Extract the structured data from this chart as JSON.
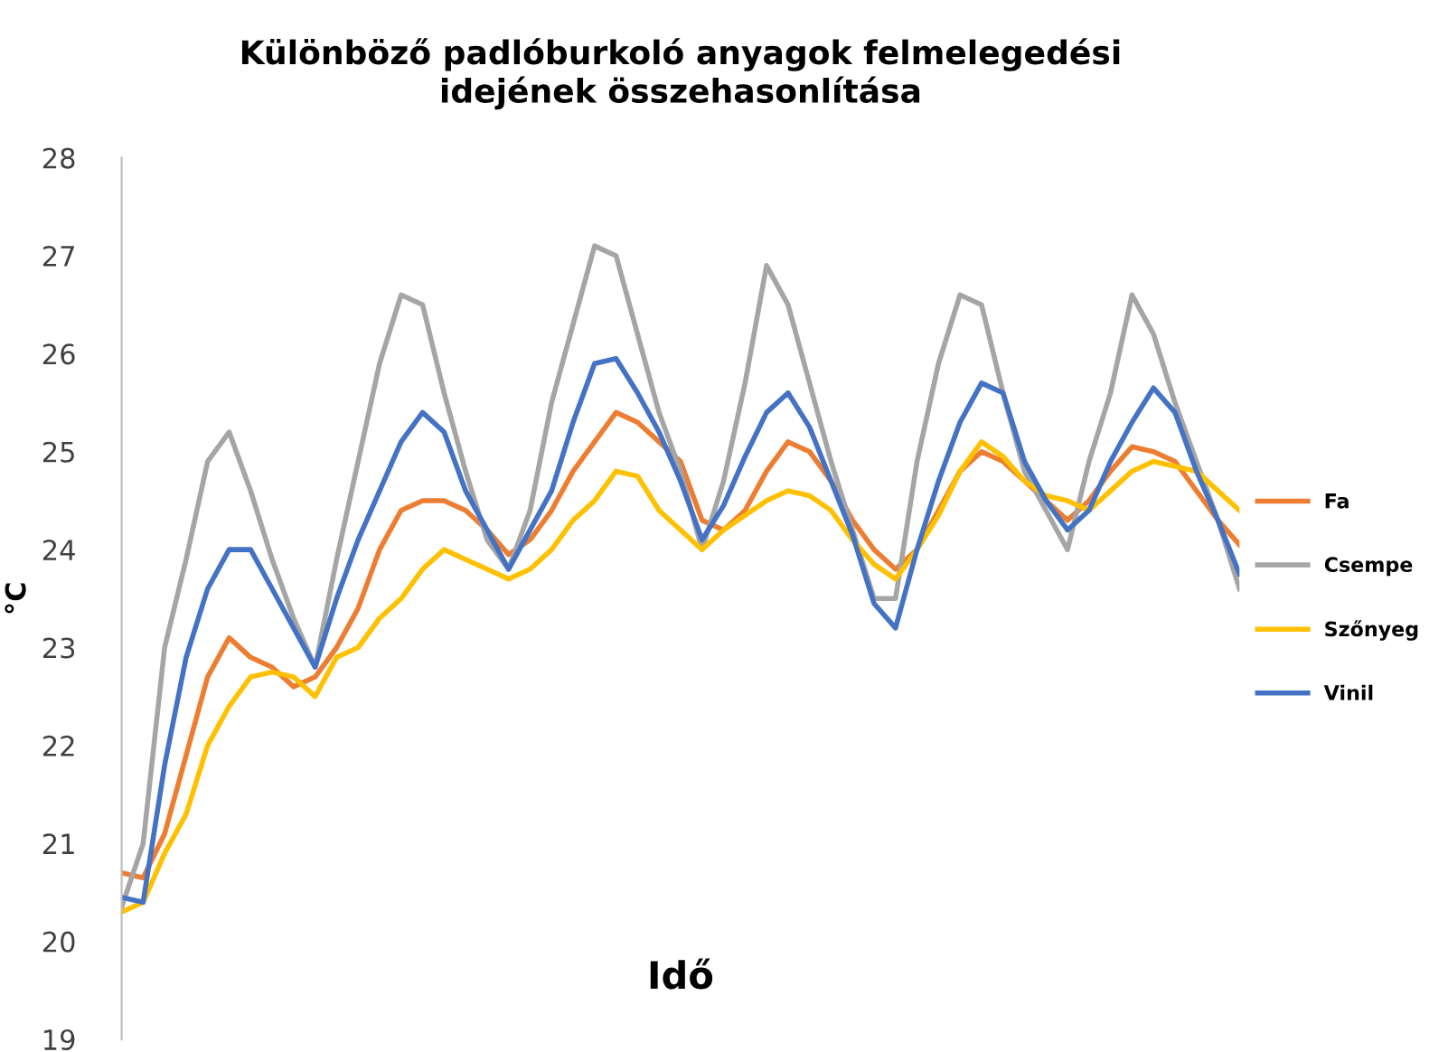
{
  "chart_data": {
    "type": "line",
    "title": "Különböző padlóburkoló anyagok felmelegedési\nidejének összehasonlítása",
    "xlabel": "Idő",
    "ylabel": "°C",
    "categories": [
      null,
      null,
      null,
      null,
      null,
      null,
      null,
      null,
      null,
      null,
      null,
      null,
      null,
      null,
      null,
      null,
      null,
      null,
      null,
      null,
      null,
      null,
      null,
      null,
      null,
      null,
      null,
      null,
      null,
      null,
      null,
      null,
      null,
      null,
      null,
      null,
      null,
      null,
      null,
      null,
      null,
      null,
      null,
      null,
      null,
      null,
      null,
      null,
      null,
      null,
      null,
      null,
      null
    ],
    "series": [
      {
        "name": "Fa",
        "color": "#ed7d31",
        "values": [
          20.7,
          20.65,
          21.1,
          21.9,
          22.7,
          23.1,
          22.9,
          22.8,
          22.6,
          22.7,
          23.0,
          23.4,
          24.0,
          24.4,
          24.5,
          24.5,
          24.4,
          24.2,
          23.95,
          24.1,
          24.4,
          24.8,
          25.1,
          25.4,
          25.3,
          25.1,
          24.9,
          24.3,
          24.2,
          24.4,
          24.8,
          25.1,
          25.0,
          24.7,
          24.3,
          24.0,
          23.8,
          24.0,
          24.4,
          24.8,
          25.0,
          24.9,
          24.7,
          24.5,
          24.3,
          24.5,
          24.8,
          25.05,
          25.0,
          24.9,
          24.6,
          24.3,
          24.05
        ]
      },
      {
        "name": "Csempe",
        "color": "#a5a5a5",
        "values": [
          20.35,
          21.0,
          23.0,
          23.9,
          24.9,
          25.2,
          24.6,
          23.9,
          23.3,
          22.8,
          23.9,
          24.9,
          25.9,
          26.6,
          26.5,
          25.6,
          24.8,
          24.1,
          23.8,
          24.4,
          25.5,
          26.3,
          27.1,
          27.0,
          26.2,
          25.4,
          24.8,
          24.0,
          24.7,
          25.7,
          26.9,
          26.5,
          25.7,
          24.9,
          24.2,
          23.5,
          23.5,
          24.9,
          25.9,
          26.6,
          26.5,
          25.6,
          24.8,
          24.4,
          24.0,
          24.9,
          25.6,
          26.6,
          26.2,
          25.5,
          24.9,
          24.3,
          23.6
        ]
      },
      {
        "name": "Szőnyeg",
        "color": "#ffc000",
        "values": [
          20.3,
          20.4,
          20.9,
          21.3,
          22.0,
          22.4,
          22.7,
          22.75,
          22.7,
          22.5,
          22.9,
          23.0,
          23.3,
          23.5,
          23.8,
          24.0,
          23.9,
          23.8,
          23.7,
          23.8,
          24.0,
          24.3,
          24.5,
          24.8,
          24.75,
          24.4,
          24.2,
          24.0,
          24.2,
          24.35,
          24.5,
          24.6,
          24.55,
          24.4,
          24.1,
          23.85,
          23.7,
          24.0,
          24.35,
          24.8,
          25.1,
          24.95,
          24.7,
          24.55,
          24.5,
          24.4,
          24.6,
          24.8,
          24.9,
          24.85,
          24.8,
          24.6,
          24.4
        ]
      },
      {
        "name": "Vinil",
        "color": "#4472c4",
        "values": [
          20.45,
          20.4,
          21.8,
          22.9,
          23.6,
          24.0,
          24.0,
          23.6,
          23.2,
          22.8,
          23.5,
          24.1,
          24.6,
          25.1,
          25.4,
          25.2,
          24.6,
          24.2,
          23.8,
          24.2,
          24.6,
          25.3,
          25.9,
          25.95,
          25.6,
          25.2,
          24.7,
          24.1,
          24.45,
          24.95,
          25.4,
          25.6,
          25.25,
          24.7,
          24.15,
          23.45,
          23.2,
          24.0,
          24.7,
          25.3,
          25.7,
          25.6,
          24.9,
          24.5,
          24.2,
          24.4,
          24.9,
          25.3,
          25.65,
          25.4,
          24.8,
          24.3,
          23.75
        ]
      }
    ],
    "ylim": [
      19,
      28
    ],
    "yticks": [
      19,
      20,
      21,
      22,
      23,
      24,
      25,
      26,
      27,
      28
    ],
    "grid": false,
    "legend": "right",
    "marker": "none",
    "line_style": "solid"
  }
}
